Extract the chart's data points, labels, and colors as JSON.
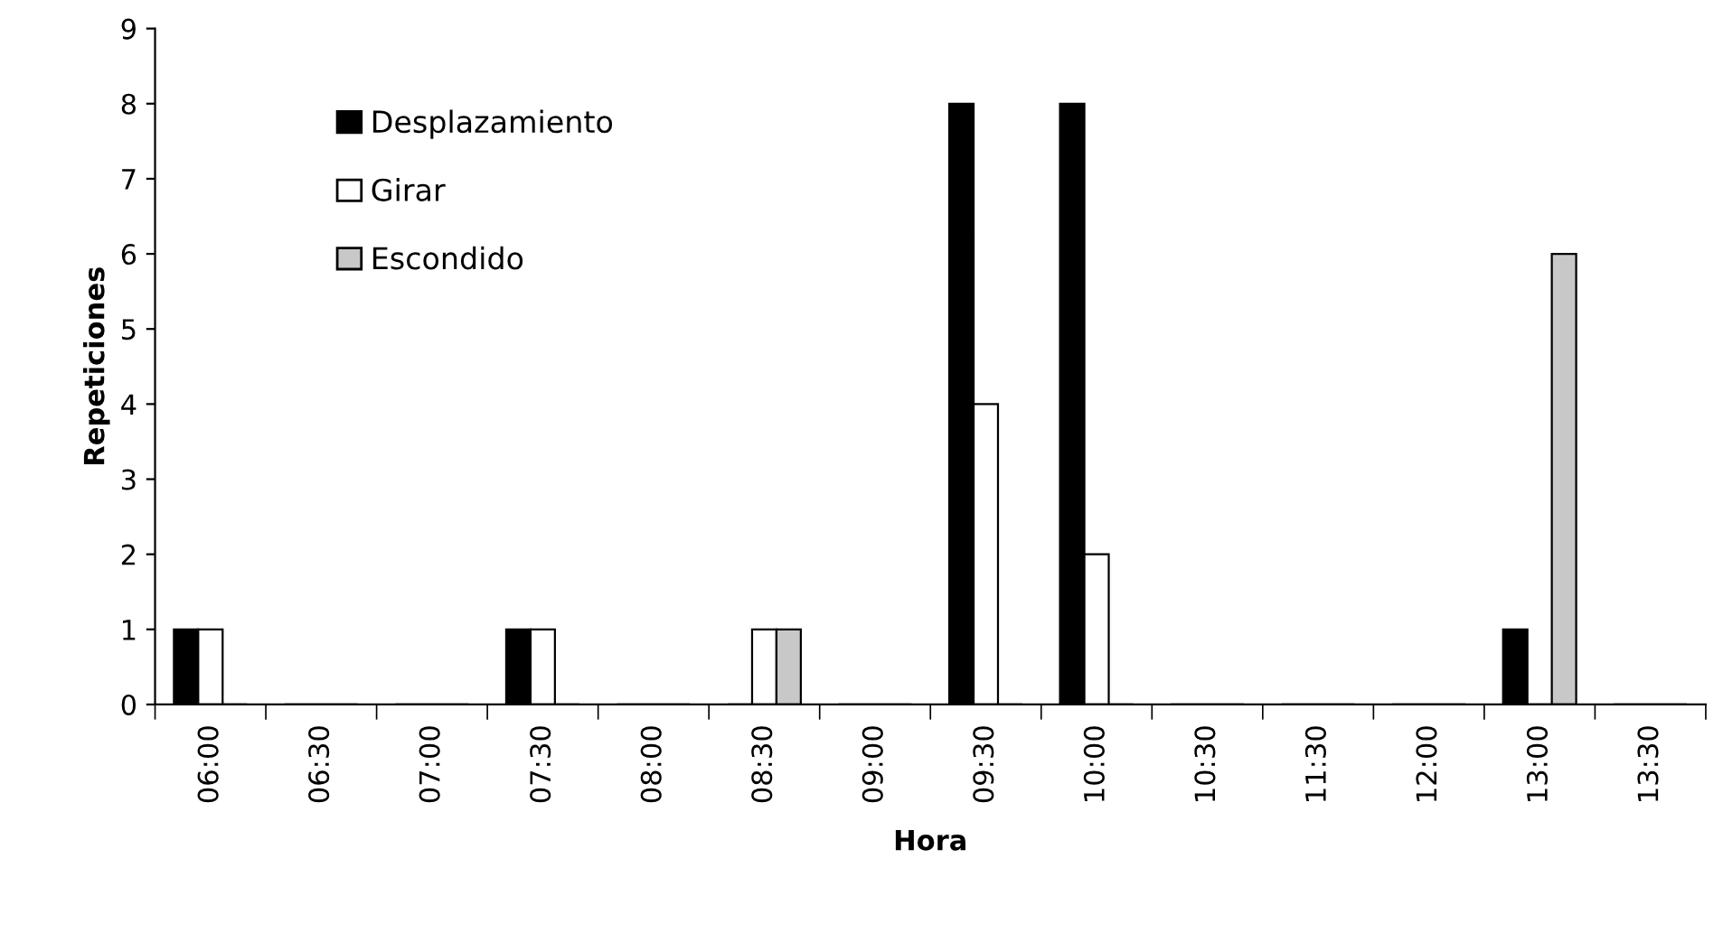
{
  "chart_data": {
    "type": "bar",
    "xlabel": "Hora",
    "ylabel": "Repeticiones",
    "categories": [
      "06:00",
      "06:30",
      "07:00",
      "07:30",
      "08:00",
      "08:30",
      "09:00",
      "09:30",
      "10:00",
      "10:30",
      "11:30",
      "12:00",
      "13:00",
      "13:30"
    ],
    "series": [
      {
        "name": "Desplazamiento",
        "color": "#000000",
        "values": [
          1,
          0,
          0,
          1,
          0,
          0,
          0,
          8,
          8,
          0,
          0,
          0,
          1,
          0
        ]
      },
      {
        "name": "Girar",
        "color": "#ffffff",
        "values": [
          1,
          0,
          0,
          1,
          0,
          1,
          0,
          4,
          2,
          0,
          0,
          0,
          0,
          0
        ]
      },
      {
        "name": "Escondido",
        "color": "#c8c8c8",
        "values": [
          0,
          0,
          0,
          0,
          0,
          1,
          0,
          0,
          0,
          0,
          0,
          0,
          6,
          0
        ]
      }
    ],
    "ylim": [
      0,
      9
    ],
    "yticks": [
      0,
      1,
      2,
      3,
      4,
      5,
      6,
      7,
      8,
      9
    ],
    "grid": false,
    "legend": "top left"
  }
}
